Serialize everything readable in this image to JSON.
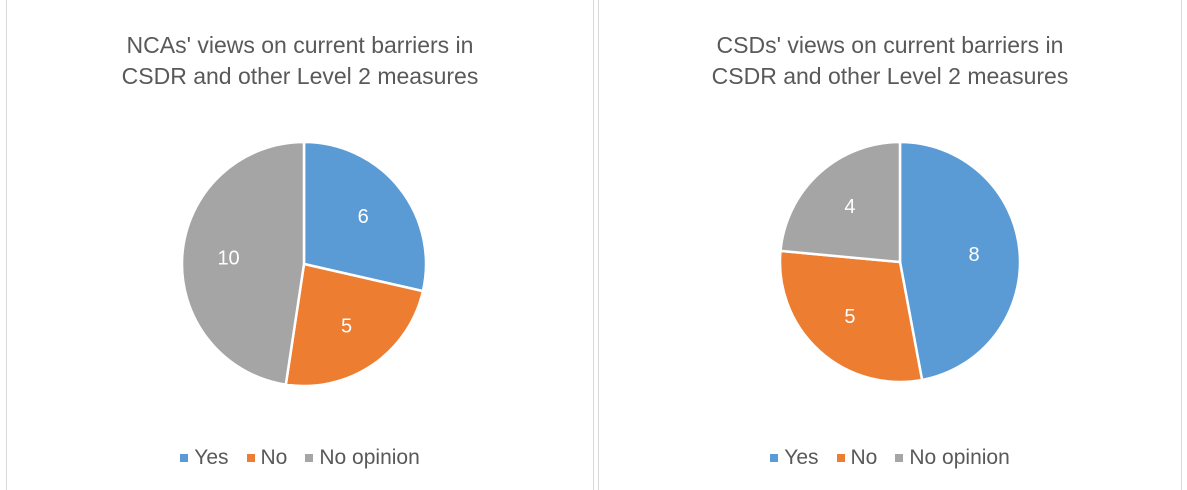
{
  "chart_data": [
    {
      "type": "pie",
      "title": "NCAs' views on current barriers in CSDR and other Level 2 measures",
      "title_lines": [
        "NCAs' views on current barriers in",
        "CSDR and other Level 2 measures"
      ],
      "categories": [
        "Yes",
        "No",
        "No opinion"
      ],
      "values": [
        6,
        5,
        10
      ],
      "colors": [
        "#5b9bd5",
        "#ed7d31",
        "#a5a5a5"
      ],
      "data_labels": [
        "6",
        "5",
        "10"
      ],
      "legend": "bottom"
    },
    {
      "type": "pie",
      "title": "CSDs' views on current barriers in CSDR and other Level 2 measures",
      "title_lines": [
        "CSDs' views on current barriers in",
        "CSDR and other Level 2 measures"
      ],
      "categories": [
        "Yes",
        "No",
        "No opinion"
      ],
      "values": [
        8,
        5,
        4
      ],
      "colors": [
        "#5b9bd5",
        "#ed7d31",
        "#a5a5a5"
      ],
      "data_labels": [
        "8",
        "5",
        "4"
      ],
      "legend": "bottom"
    }
  ]
}
